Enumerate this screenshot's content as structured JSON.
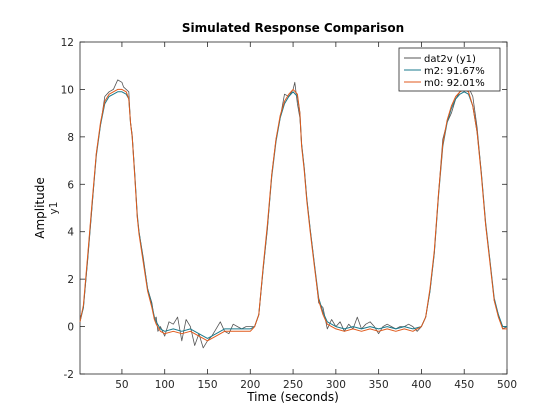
{
  "chart_data": {
    "type": "line",
    "title": "Simulated Response Comparison",
    "xlabel": "Time (seconds)",
    "ylabel": "Amplitude",
    "ylabel_sub": "y1",
    "xlim": [
      1,
      500
    ],
    "ylim": [
      -2,
      12
    ],
    "xticks": [
      50,
      100,
      150,
      200,
      250,
      300,
      350,
      400,
      450,
      500
    ],
    "yticks": [
      -2,
      0,
      2,
      4,
      6,
      8,
      10,
      12
    ],
    "grid": false,
    "legend_position": "top-right",
    "series": [
      {
        "name": "dat2v (y1)",
        "color": "#555555",
        "x": [
          1,
          5,
          10,
          15,
          20,
          25,
          30,
          35,
          40,
          45,
          50,
          52,
          55,
          58,
          60,
          62,
          65,
          68,
          70,
          75,
          80,
          85,
          88,
          90,
          92,
          95,
          100,
          105,
          110,
          115,
          120,
          125,
          130,
          135,
          140,
          145,
          150,
          155,
          160,
          165,
          170,
          175,
          180,
          185,
          190,
          195,
          200,
          205,
          210,
          215,
          220,
          225,
          230,
          235,
          240,
          245,
          250,
          252,
          255,
          258,
          260,
          263,
          266,
          270,
          275,
          280,
          285,
          290,
          295,
          300,
          305,
          310,
          315,
          320,
          325,
          330,
          335,
          340,
          345,
          350,
          355,
          360,
          365,
          370,
          375,
          380,
          385,
          390,
          395,
          400,
          405,
          410,
          415,
          420,
          425,
          430,
          435,
          440,
          445,
          450,
          455,
          460,
          465,
          470,
          475,
          480,
          485,
          490,
          495,
          500
        ],
        "values": [
          0.3,
          0.8,
          2.8,
          5.0,
          7.3,
          8.5,
          9.7,
          9.9,
          10.0,
          10.4,
          10.3,
          10.1,
          10.0,
          9.9,
          8.6,
          8.1,
          6.4,
          4.6,
          4.0,
          2.9,
          1.6,
          1.0,
          0.3,
          0.4,
          -0.2,
          0.0,
          -0.4,
          0.2,
          0.1,
          0.4,
          -0.6,
          0.3,
          0.0,
          -0.8,
          -0.3,
          -0.9,
          -0.6,
          -0.4,
          -0.1,
          0.2,
          -0.2,
          -0.3,
          0.1,
          0.0,
          -0.1,
          0.0,
          0.0,
          0.0,
          0.5,
          2.4,
          4.1,
          6.4,
          7.9,
          8.8,
          9.8,
          9.7,
          10.0,
          10.3,
          9.4,
          8.8,
          7.7,
          6.7,
          5.4,
          4.1,
          2.6,
          1.0,
          0.8,
          -0.1,
          0.3,
          0.0,
          0.2,
          -0.2,
          0.1,
          -0.1,
          0.4,
          -0.1,
          0.1,
          0.2,
          0.0,
          -0.3,
          0.0,
          0.1,
          0.0,
          -0.1,
          0.0,
          0.0,
          0.1,
          0.0,
          -0.2,
          0.0,
          0.4,
          1.5,
          3.1,
          5.6,
          7.9,
          8.6,
          9.0,
          9.6,
          9.9,
          10.0,
          10.1,
          9.7,
          8.4,
          6.5,
          4.3,
          2.8,
          1.1,
          0.5,
          -0.1,
          0.0
        ]
      },
      {
        "name": "m2: 91.67%",
        "color": "#1a7a8c",
        "x": [
          1,
          5,
          10,
          15,
          20,
          25,
          30,
          35,
          40,
          45,
          50,
          55,
          58,
          60,
          62,
          65,
          68,
          70,
          75,
          80,
          85,
          88,
          90,
          95,
          100,
          110,
          120,
          130,
          140,
          150,
          160,
          170,
          180,
          190,
          200,
          205,
          210,
          215,
          220,
          225,
          230,
          235,
          240,
          245,
          250,
          255,
          258,
          260,
          263,
          266,
          270,
          275,
          280,
          285,
          290,
          300,
          310,
          320,
          330,
          340,
          350,
          360,
          370,
          380,
          390,
          400,
          405,
          410,
          415,
          420,
          425,
          430,
          435,
          440,
          445,
          450,
          455,
          460,
          465,
          470,
          475,
          480,
          485,
          490,
          495,
          500
        ],
        "values": [
          0.2,
          0.8,
          2.9,
          5.1,
          7.2,
          8.5,
          9.4,
          9.7,
          9.8,
          9.9,
          9.9,
          9.8,
          9.6,
          8.6,
          8.0,
          6.4,
          4.7,
          4.0,
          2.8,
          1.6,
          0.9,
          0.4,
          0.2,
          -0.1,
          -0.2,
          -0.1,
          -0.2,
          -0.1,
          -0.3,
          -0.5,
          -0.3,
          -0.1,
          -0.1,
          -0.1,
          -0.1,
          0.0,
          0.5,
          2.4,
          4.2,
          6.3,
          7.8,
          8.8,
          9.4,
          9.7,
          9.9,
          9.7,
          9.0,
          7.7,
          6.7,
          5.4,
          4.1,
          2.6,
          1.2,
          0.6,
          0.2,
          0.0,
          -0.1,
          0.0,
          -0.1,
          0.0,
          -0.1,
          0.0,
          -0.1,
          0.0,
          -0.1,
          0.0,
          0.4,
          1.5,
          3.1,
          5.5,
          7.6,
          8.6,
          9.2,
          9.6,
          9.8,
          9.9,
          9.8,
          9.3,
          8.2,
          6.5,
          4.4,
          2.8,
          1.2,
          0.5,
          0.0,
          0.0
        ]
      },
      {
        "name": "m0: 92.01%",
        "color": "#e05a1c",
        "x": [
          1,
          5,
          10,
          15,
          20,
          25,
          30,
          35,
          40,
          45,
          50,
          55,
          58,
          60,
          62,
          65,
          68,
          70,
          75,
          80,
          85,
          88,
          90,
          95,
          100,
          110,
          120,
          130,
          140,
          150,
          160,
          170,
          180,
          190,
          200,
          205,
          210,
          215,
          220,
          225,
          230,
          235,
          240,
          245,
          250,
          255,
          258,
          260,
          263,
          266,
          270,
          275,
          280,
          285,
          290,
          300,
          310,
          320,
          330,
          340,
          350,
          360,
          370,
          380,
          390,
          400,
          405,
          410,
          415,
          420,
          425,
          430,
          435,
          440,
          445,
          450,
          455,
          460,
          465,
          470,
          475,
          480,
          485,
          490,
          495,
          500
        ],
        "values": [
          0.2,
          0.9,
          3.0,
          5.2,
          7.3,
          8.6,
          9.5,
          9.8,
          9.9,
          10.0,
          10.0,
          9.9,
          9.6,
          8.6,
          8.0,
          6.3,
          4.6,
          3.9,
          2.7,
          1.5,
          0.8,
          0.3,
          0.1,
          -0.2,
          -0.3,
          -0.2,
          -0.3,
          -0.2,
          -0.4,
          -0.6,
          -0.4,
          -0.2,
          -0.2,
          -0.2,
          -0.2,
          0.0,
          0.5,
          2.5,
          4.3,
          6.4,
          7.9,
          8.9,
          9.5,
          9.8,
          10.0,
          9.8,
          9.0,
          7.6,
          6.6,
          5.3,
          4.0,
          2.5,
          1.1,
          0.5,
          0.1,
          -0.1,
          -0.2,
          -0.1,
          -0.2,
          -0.1,
          -0.2,
          -0.1,
          -0.2,
          -0.1,
          -0.2,
          0.0,
          0.4,
          1.6,
          3.2,
          5.6,
          7.7,
          8.7,
          9.3,
          9.7,
          9.9,
          10.0,
          9.9,
          9.3,
          8.2,
          6.4,
          4.3,
          2.7,
          1.1,
          0.4,
          -0.1,
          -0.1
        ]
      }
    ]
  }
}
